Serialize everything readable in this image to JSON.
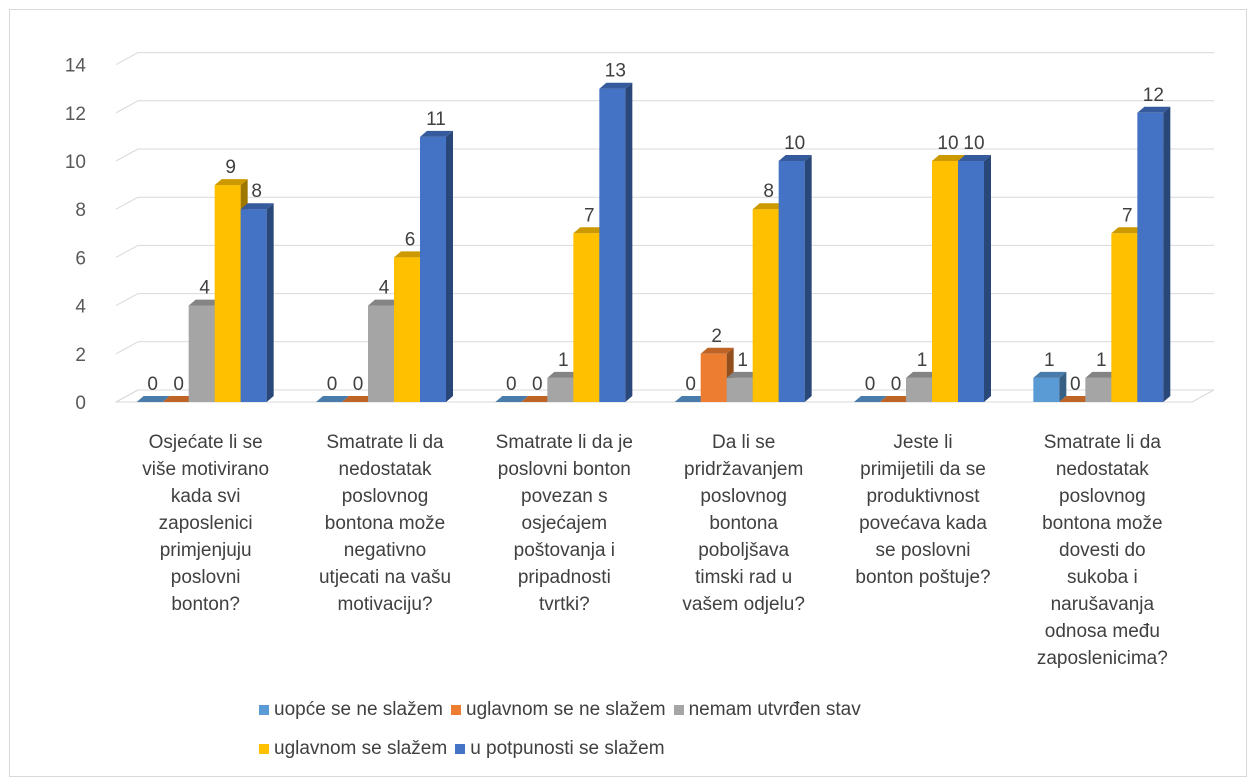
{
  "chart_data": {
    "type": "bar",
    "style": "3d-clustered-column",
    "categories": [
      [
        "Osjećate li se",
        "više motivirano",
        "kada svi",
        "zaposlenici",
        "primjenjuju",
        "poslovni",
        "bonton?"
      ],
      [
        "Smatrate li da",
        "nedostatak",
        "poslovnog",
        "bontona može",
        "negativno",
        "utjecati na vašu",
        "motivaciju?"
      ],
      [
        "Smatrate li da je",
        "poslovni bonton",
        "povezan s",
        "osjećajem",
        "poštovanja i",
        "pripadnosti",
        "tvrtki?"
      ],
      [
        "Da li se",
        "pridržavanjem",
        "poslovnog",
        "bontona",
        "poboljšava",
        "timski rad u",
        "vašem odjelu?"
      ],
      [
        "Jeste li",
        "primijetili da se",
        "produktivnost",
        "povećava kada",
        "se poslovni",
        "bonton poštuje?"
      ],
      [
        "Smatrate li da",
        "nedostatak",
        "poslovnog",
        "bontona može",
        "dovesti do",
        "sukoba i",
        "narušavanja",
        "odnosa među",
        "zaposlenicima?"
      ]
    ],
    "series": [
      {
        "name": "uopće se ne slažem",
        "color": "#5b9bd5",
        "values": [
          0,
          0,
          0,
          0,
          0,
          1
        ]
      },
      {
        "name": "uglavnom se ne slažem",
        "color": "#ed7d31",
        "values": [
          0,
          0,
          0,
          2,
          0,
          0
        ]
      },
      {
        "name": "nemam utvrđen stav",
        "color": "#a5a5a5",
        "values": [
          4,
          4,
          1,
          1,
          1,
          1
        ]
      },
      {
        "name": "uglavnom se slažem",
        "color": "#ffc000",
        "values": [
          9,
          6,
          7,
          8,
          10,
          7
        ]
      },
      {
        "name": "u potpunosti se slažem",
        "color": "#4472c4",
        "values": [
          8,
          11,
          13,
          10,
          10,
          12
        ]
      }
    ],
    "data_labels": [
      [
        "0",
        "0",
        "4",
        "9",
        "8"
      ],
      [
        "0",
        "0",
        "4",
        "6",
        "11"
      ],
      [
        "0",
        "0",
        "1",
        "7",
        "13"
      ],
      [
        "0",
        "2",
        "1",
        "8",
        "10"
      ],
      [
        "0",
        "0",
        "1",
        "10",
        "10"
      ],
      [
        "1",
        "0",
        "1",
        "7",
        "12"
      ]
    ],
    "y_ticks": [
      "0",
      "2",
      "4",
      "6",
      "8",
      "10",
      "12",
      "14"
    ],
    "ylim": [
      0,
      14
    ],
    "grid": true,
    "legend_position": "bottom",
    "legend_rows": [
      [
        0,
        1,
        2
      ],
      [
        3,
        4
      ]
    ]
  }
}
